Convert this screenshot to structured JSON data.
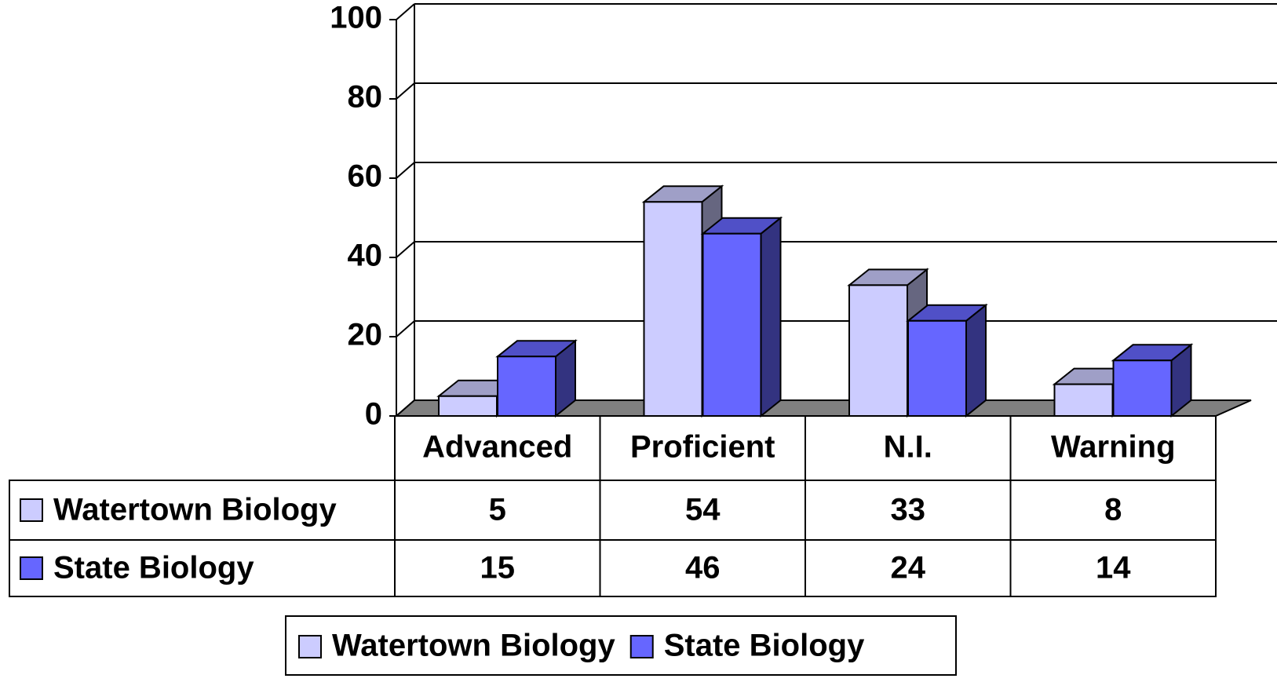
{
  "chart_data": {
    "type": "bar3d",
    "categories": [
      "Advanced",
      "Proficient",
      "N.I.",
      "Warning"
    ],
    "series": [
      {
        "name": "Watertown Biology",
        "color": "#ccccff",
        "values": [
          5,
          54,
          33,
          8
        ]
      },
      {
        "name": "State Biology",
        "color": "#6666ff",
        "values": [
          15,
          46,
          24,
          14
        ]
      }
    ],
    "ylim": [
      0,
      100
    ],
    "yticks": [
      0,
      20,
      40,
      60,
      80,
      100
    ],
    "grid": true
  }
}
